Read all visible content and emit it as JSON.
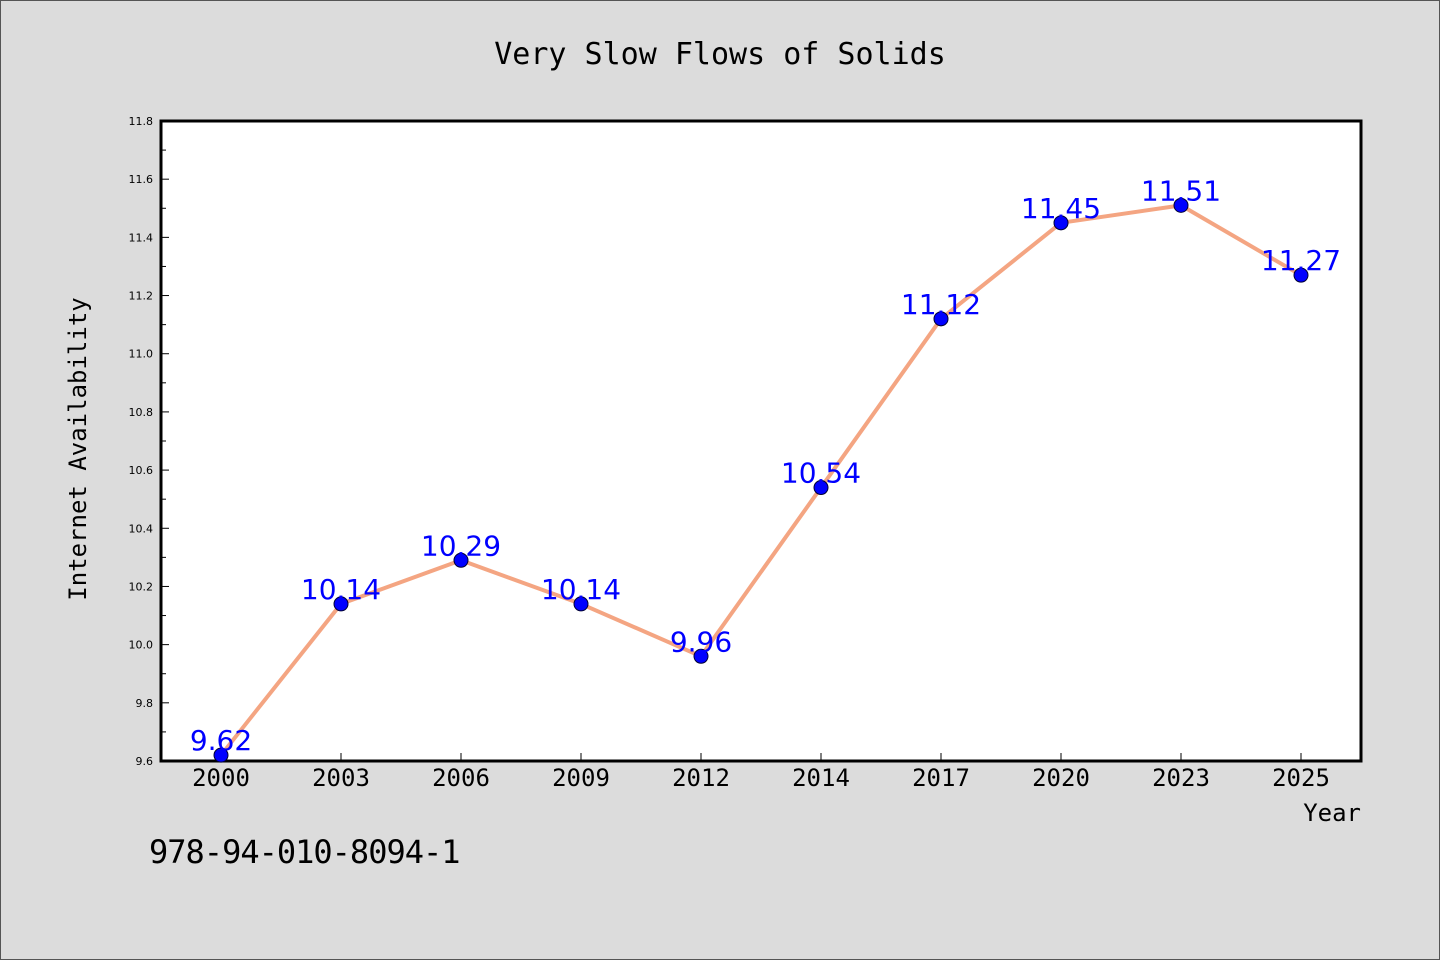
{
  "chart_data": {
    "type": "line",
    "title": "Very Slow Flows of Solids",
    "xlabel": "Year",
    "ylabel": "Internet Availability",
    "categories": [
      "2000",
      "2003",
      "2006",
      "2009",
      "2012",
      "2014",
      "2017",
      "2020",
      "2023",
      "2025"
    ],
    "series": [
      {
        "values": [
          9.62,
          10.14,
          10.29,
          10.14,
          9.96,
          10.54,
          11.12,
          11.45,
          11.51,
          11.27
        ],
        "data_labels": [
          "9.62",
          "10.14",
          "10.29",
          "10.14",
          "9.96",
          "10.54",
          "11.12",
          "11.45",
          "11.51",
          "11.27"
        ]
      }
    ],
    "ylim": [
      9.6,
      11.8
    ],
    "yticks": [
      "9.6",
      "9.8",
      "10.0",
      "10.2",
      "10.4",
      "10.6",
      "10.8",
      "11.0",
      "11.2",
      "11.4",
      "11.6",
      "11.8"
    ],
    "grid": false,
    "colors": {
      "line": "#f4a582",
      "marker": "#0000ff",
      "data_label": "#0000ff",
      "background": "#dcdcdc",
      "plot_background": "#ffffff"
    }
  },
  "footer_text": "978-94-010-8094-1"
}
